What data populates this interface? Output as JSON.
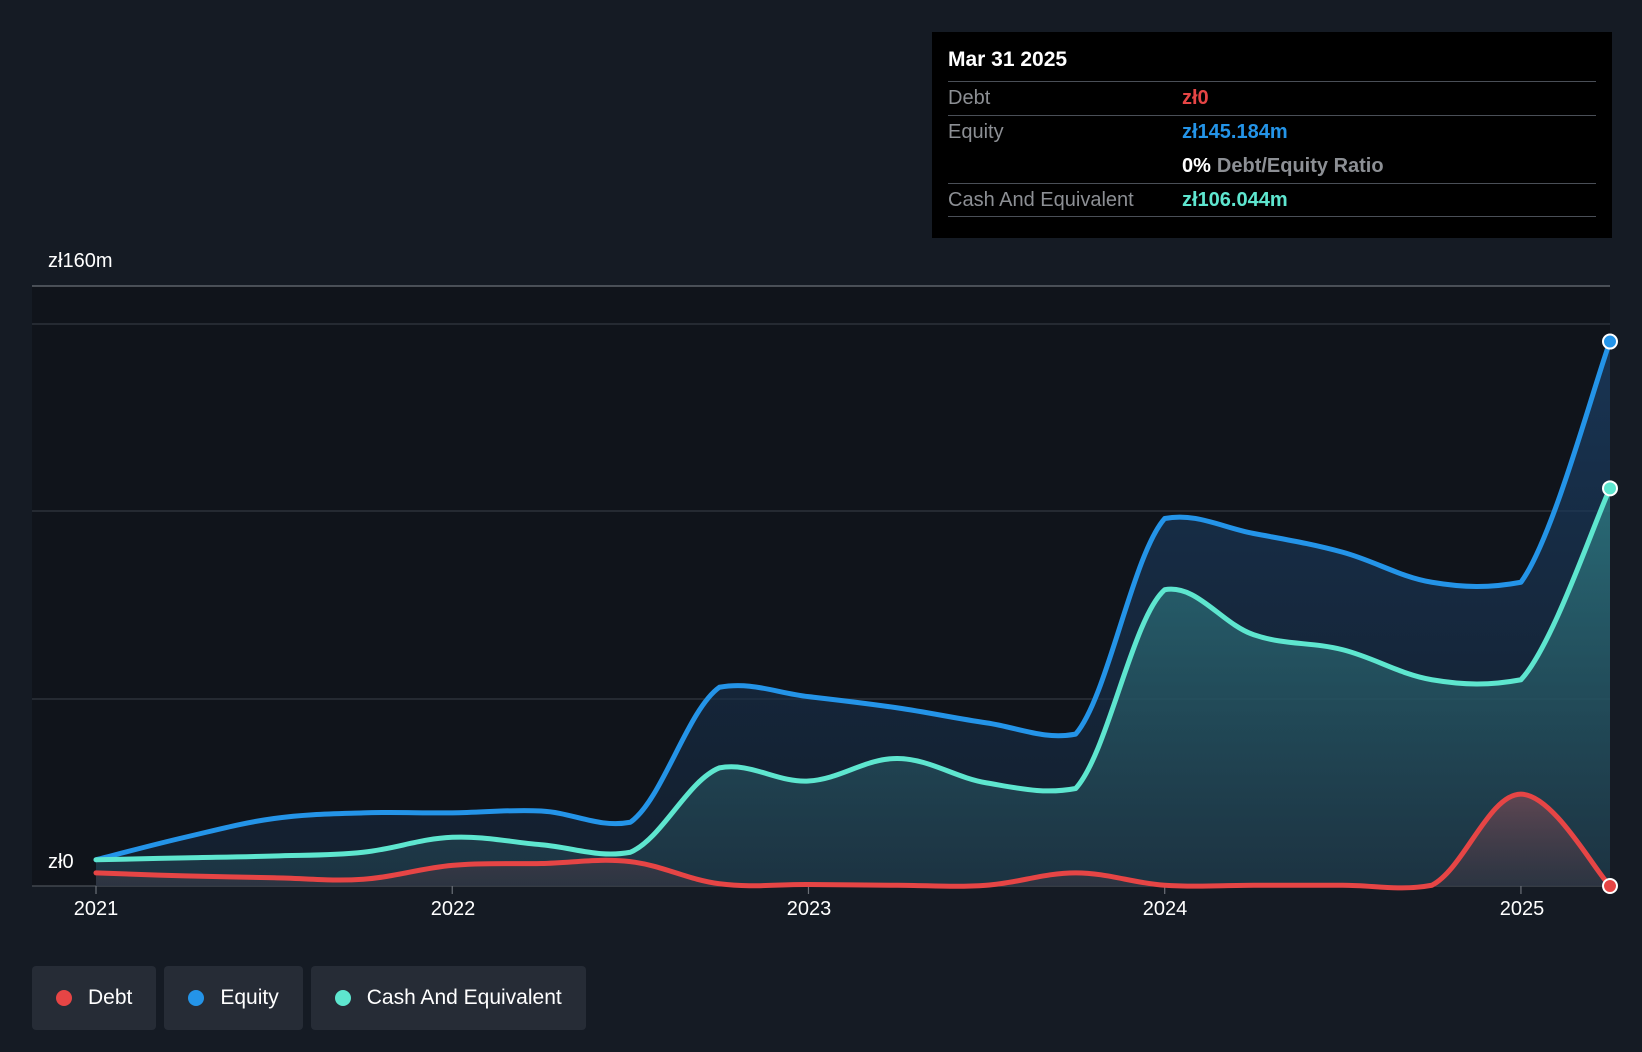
{
  "tooltip": {
    "date": "Mar 31 2025",
    "debt_label": "Debt",
    "debt_value": "zł0",
    "equity_label": "Equity",
    "equity_value": "zł145.184m",
    "ratio_value": "0%",
    "ratio_label": "Debt/Equity Ratio",
    "cash_label": "Cash And Equivalent",
    "cash_value": "zł106.044m"
  },
  "legend": [
    {
      "label": "Debt",
      "color": "#e64545"
    },
    {
      "label": "Equity",
      "color": "#2494e8"
    },
    {
      "label": "Cash And Equivalent",
      "color": "#5ee6cf"
    }
  ],
  "chart_data": {
    "type": "area",
    "title": "",
    "xlabel": "",
    "ylabel": "",
    "y_top_label": "zł160m",
    "y_bottom_label": "zł0",
    "ylim": [
      0,
      160
    ],
    "xlim": [
      2021.0,
      2025.25
    ],
    "x_ticks": [
      "2021",
      "2022",
      "2023",
      "2024",
      "2025"
    ],
    "x_tick_values": [
      2021,
      2022,
      2023,
      2024,
      2025
    ],
    "grid": true,
    "legend_position": "bottom-left",
    "colors": {
      "Debt": "#e64545",
      "Equity": "#2494e8",
      "Cash And Equivalent": "#5ee6cf"
    },
    "x": [
      2021.0,
      2021.25,
      2021.5,
      2021.75,
      2022.0,
      2022.25,
      2022.5,
      2022.75,
      2023.0,
      2023.25,
      2023.5,
      2023.75,
      2024.0,
      2024.25,
      2024.5,
      2024.75,
      2025.0,
      2025.25
    ],
    "series": [
      {
        "name": "Equity",
        "values": [
          7,
          13,
          18,
          19.5,
          19.5,
          20,
          17,
          53,
          50.5,
          47.5,
          43.5,
          40.5,
          98,
          94,
          89,
          81,
          81,
          145.184
        ]
      },
      {
        "name": "Cash And Equivalent",
        "values": [
          7,
          7.5,
          8,
          9,
          13,
          11,
          9,
          31.5,
          28,
          34,
          27.5,
          26,
          79,
          67,
          63,
          55,
          55,
          106.044
        ]
      },
      {
        "name": "Debt",
        "values": [
          3.5,
          2.7,
          2.2,
          1.8,
          5.5,
          6,
          6.5,
          0.6,
          0.4,
          0.2,
          0.2,
          3.5,
          0.2,
          0.2,
          0.2,
          0.2,
          24.5,
          0
        ]
      }
    ]
  }
}
